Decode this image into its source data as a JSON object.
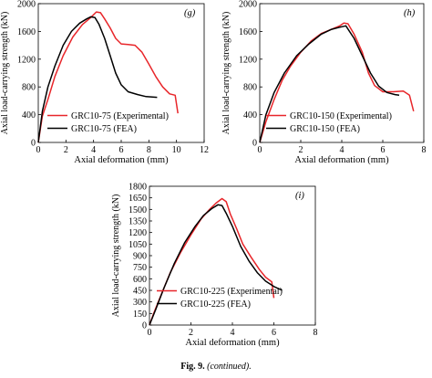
{
  "figure": {
    "caption_label": "Fig. 9.",
    "caption_note": "(continued)."
  },
  "colors": {
    "experimental": "#e8262a",
    "fea": "#000000",
    "axis": "#000000"
  },
  "chart_data": [
    {
      "type": "line",
      "panel_label": "(g)",
      "xlabel": "Axial deformation (mm)",
      "ylabel": "Axial load-carrying strength (kN)",
      "xlim": [
        0,
        12
      ],
      "ylim": [
        0,
        2000
      ],
      "xticks": [
        0,
        2,
        4,
        6,
        8,
        10,
        12
      ],
      "yticks": [
        0,
        400,
        800,
        1200,
        1600,
        2000
      ],
      "grid": false,
      "legend_position": "bottom-right",
      "series": [
        {
          "name": "GRC10-75 (Experimental)",
          "color": "#e8262a",
          "x": [
            0,
            0.3,
            0.7,
            1.2,
            1.8,
            2.5,
            3.2,
            3.8,
            4.2,
            4.5,
            4.8,
            5.2,
            5.6,
            6.0,
            6.5,
            7.0,
            7.5,
            8.0,
            8.5,
            9.0,
            9.5,
            9.9,
            10.1
          ],
          "y": [
            0,
            380,
            620,
            950,
            1250,
            1520,
            1700,
            1800,
            1880,
            1870,
            1780,
            1650,
            1500,
            1420,
            1410,
            1400,
            1300,
            1130,
            950,
            800,
            700,
            680,
            420
          ]
        },
        {
          "name": "GRC10-75 (FEA)",
          "color": "#000000",
          "x": [
            0,
            0.3,
            0.7,
            1.2,
            1.8,
            2.4,
            3.0,
            3.5,
            3.8,
            4.1,
            4.4,
            4.8,
            5.2,
            5.6,
            6.0,
            6.5,
            7.2,
            7.8,
            8.6
          ],
          "y": [
            0,
            450,
            800,
            1100,
            1400,
            1600,
            1720,
            1780,
            1810,
            1800,
            1700,
            1500,
            1250,
            1000,
            830,
            730,
            690,
            660,
            650
          ]
        }
      ]
    },
    {
      "type": "line",
      "panel_label": "(h)",
      "xlabel": "Axial deformation (mm)",
      "ylabel": "Axial load-carrying strength (kN)",
      "xlim": [
        0,
        8
      ],
      "ylim": [
        0,
        2000
      ],
      "xticks": [
        0,
        2,
        4,
        6,
        8
      ],
      "yticks": [
        0,
        400,
        800,
        1200,
        1600,
        2000
      ],
      "grid": false,
      "legend_position": "bottom-right",
      "series": [
        {
          "name": "GRC10-150 (Experimental)",
          "color": "#e8262a",
          "x": [
            0,
            0.3,
            0.7,
            1.1,
            1.5,
            2.0,
            2.5,
            3.0,
            3.5,
            3.9,
            4.1,
            4.3,
            4.6,
            5.0,
            5.3,
            5.6,
            6.0,
            6.5,
            7.0,
            7.3,
            7.5
          ],
          "y": [
            0,
            300,
            620,
            900,
            1100,
            1300,
            1460,
            1570,
            1630,
            1680,
            1720,
            1710,
            1560,
            1300,
            1000,
            820,
            730,
            730,
            740,
            680,
            450
          ]
        },
        {
          "name": "GRC10-150 (FEA)",
          "color": "#000000",
          "x": [
            0,
            0.3,
            0.7,
            1.2,
            1.8,
            2.4,
            3.0,
            3.5,
            3.9,
            4.2,
            4.6,
            5.0,
            5.4,
            5.8,
            6.2,
            6.6,
            6.8
          ],
          "y": [
            0,
            400,
            720,
            1000,
            1250,
            1420,
            1560,
            1630,
            1660,
            1680,
            1500,
            1250,
            1000,
            810,
            720,
            690,
            680
          ]
        }
      ]
    },
    {
      "type": "line",
      "panel_label": "(i)",
      "xlabel": "Axial deformation (mm)",
      "ylabel": "Axial load-carrying strength (kN)",
      "xlim": [
        0,
        8
      ],
      "ylim": [
        0,
        1800
      ],
      "xticks": [
        0,
        2,
        4,
        6,
        8
      ],
      "yticks": [
        0,
        150,
        300,
        450,
        600,
        750,
        900,
        1050,
        1200,
        1350,
        1500,
        1650,
        1800
      ],
      "grid": false,
      "legend_position": "bottom-right",
      "series": [
        {
          "name": "GRC10-225 (Experimental)",
          "color": "#e8262a",
          "x": [
            0,
            0.2,
            0.5,
            1.0,
            1.5,
            2.0,
            2.5,
            2.9,
            3.2,
            3.5,
            3.7,
            3.9,
            4.2,
            4.5,
            4.9,
            5.3,
            5.6,
            5.9,
            6.0
          ],
          "y": [
            0,
            150,
            350,
            680,
            940,
            1170,
            1380,
            1500,
            1580,
            1640,
            1600,
            1440,
            1250,
            1050,
            880,
            720,
            620,
            560,
            350
          ]
        },
        {
          "name": "GRC10-225 (FEA)",
          "color": "#000000",
          "x": [
            0,
            0.3,
            0.7,
            1.2,
            1.7,
            2.2,
            2.6,
            3.0,
            3.3,
            3.5,
            3.7,
            4.0,
            4.4,
            4.8,
            5.2,
            5.6,
            6.0,
            6.4
          ],
          "y": [
            0,
            200,
            480,
            800,
            1070,
            1280,
            1420,
            1510,
            1560,
            1550,
            1450,
            1280,
            1020,
            830,
            680,
            570,
            500,
            450
          ]
        }
      ]
    }
  ]
}
